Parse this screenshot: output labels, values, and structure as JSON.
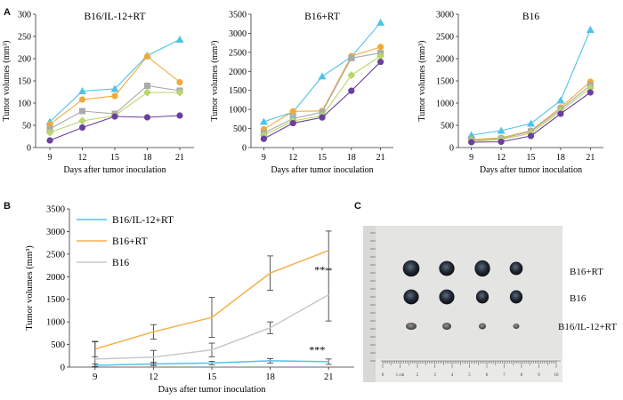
{
  "panels": {
    "a": "A",
    "b": "B",
    "c": "C"
  },
  "chart_data": [
    {
      "type": "line",
      "title": "B16/IL-12+RT",
      "xlabel": "Days after tumor inoculation",
      "ylabel": "Tumor volumes (mm³)",
      "x": [
        9,
        12,
        15,
        18,
        21
      ],
      "ylim": [
        0,
        300
      ],
      "yticks": [
        0,
        50,
        100,
        150,
        200,
        250,
        300
      ],
      "series": [
        {
          "color": "#4FC3E8",
          "marker": "triangle",
          "values": [
            58,
            127,
            132,
            207,
            243
          ]
        },
        {
          "color": "#F2A93B",
          "marker": "circle",
          "values": [
            52,
            108,
            116,
            205,
            147
          ]
        },
        {
          "color": "#AAAAAA",
          "marker": "square",
          "values": [
            42,
            82,
            76,
            139,
            128
          ]
        },
        {
          "color": "#B8D66A",
          "marker": "diamond",
          "values": [
            34,
            60,
            72,
            124,
            124
          ]
        },
        {
          "color": "#6B3FA0",
          "marker": "circle",
          "values": [
            16,
            45,
            70,
            68,
            72
          ]
        }
      ]
    },
    {
      "type": "line",
      "title": "B16+RT",
      "xlabel": "Days after tumor inoculation",
      "ylabel": "Tumor volumes (mm³)",
      "x": [
        9,
        12,
        15,
        18,
        21
      ],
      "ylim": [
        0,
        3500
      ],
      "yticks": [
        0,
        500,
        1000,
        1500,
        2000,
        2500,
        3000,
        3500
      ],
      "series": [
        {
          "color": "#4FC3E8",
          "marker": "triangle",
          "values": [
            680,
            930,
            1870,
            2380,
            3280
          ]
        },
        {
          "color": "#F2A93B",
          "marker": "circle",
          "values": [
            480,
            950,
            960,
            2400,
            2640
          ]
        },
        {
          "color": "#AAAAAA",
          "marker": "square",
          "values": [
            380,
            760,
            930,
            2350,
            2480
          ]
        },
        {
          "color": "#B8D66A",
          "marker": "diamond",
          "values": [
            320,
            700,
            830,
            1900,
            2400
          ]
        },
        {
          "color": "#6B3FA0",
          "marker": "circle",
          "values": [
            230,
            640,
            790,
            1490,
            2250
          ]
        }
      ]
    },
    {
      "type": "line",
      "title": "B16",
      "xlabel": "Days after tumor inoculation",
      "ylabel": "Tumor volumes (mm³)",
      "x": [
        9,
        12,
        15,
        18,
        21
      ],
      "ylim": [
        0,
        3000
      ],
      "yticks": [
        0,
        500,
        1000,
        1500,
        2000,
        2500,
        3000
      ],
      "series": [
        {
          "color": "#4FC3E8",
          "marker": "triangle",
          "values": [
            280,
            380,
            540,
            1060,
            2650
          ]
        },
        {
          "color": "#F2A93B",
          "marker": "circle",
          "values": [
            180,
            220,
            380,
            900,
            1480
          ]
        },
        {
          "color": "#AAAAAA",
          "marker": "square",
          "values": [
            160,
            200,
            360,
            860,
            1400
          ]
        },
        {
          "color": "#B8D66A",
          "marker": "diamond",
          "values": [
            140,
            180,
            320,
            820,
            1340
          ]
        },
        {
          "color": "#6B3FA0",
          "marker": "circle",
          "values": [
            120,
            130,
            260,
            760,
            1240
          ]
        }
      ]
    },
    {
      "type": "line",
      "title": "",
      "xlabel": "Days after tumor inoculation",
      "ylabel": "Tumor volumes (mm³)",
      "x": [
        9,
        12,
        15,
        18,
        21
      ],
      "ylim": [
        0,
        3500
      ],
      "yticks": [
        0,
        500,
        1000,
        1500,
        2000,
        2500,
        3000,
        3500
      ],
      "legend": "top-left",
      "series": [
        {
          "name": "B16/IL-12+RT",
          "color": "#4FC3E8",
          "values": [
            40,
            70,
            90,
            140,
            120
          ],
          "err": [
            30,
            40,
            40,
            50,
            60
          ]
        },
        {
          "name": "B16+RT",
          "color": "#F2B24B",
          "values": [
            400,
            780,
            1100,
            2080,
            2580
          ],
          "err": [
            170,
            160,
            440,
            380,
            430
          ]
        },
        {
          "name": "B16",
          "color": "#C8C8C8",
          "values": [
            180,
            220,
            380,
            870,
            1600
          ],
          "err": [
            380,
            150,
            150,
            130,
            580
          ]
        }
      ],
      "annotations": [
        {
          "text": "**",
          "x": 21,
          "y": 2150
        },
        {
          "text": "***",
          "x": 21,
          "y": 380
        }
      ]
    }
  ],
  "photo": {
    "rows": [
      "B16+RT",
      "B16",
      "B16/IL-12+RT"
    ],
    "ruler_ticks": [
      "0",
      "1 cm",
      "2",
      "3",
      "4",
      "5",
      "6",
      "7",
      "8",
      "9",
      "10"
    ]
  }
}
